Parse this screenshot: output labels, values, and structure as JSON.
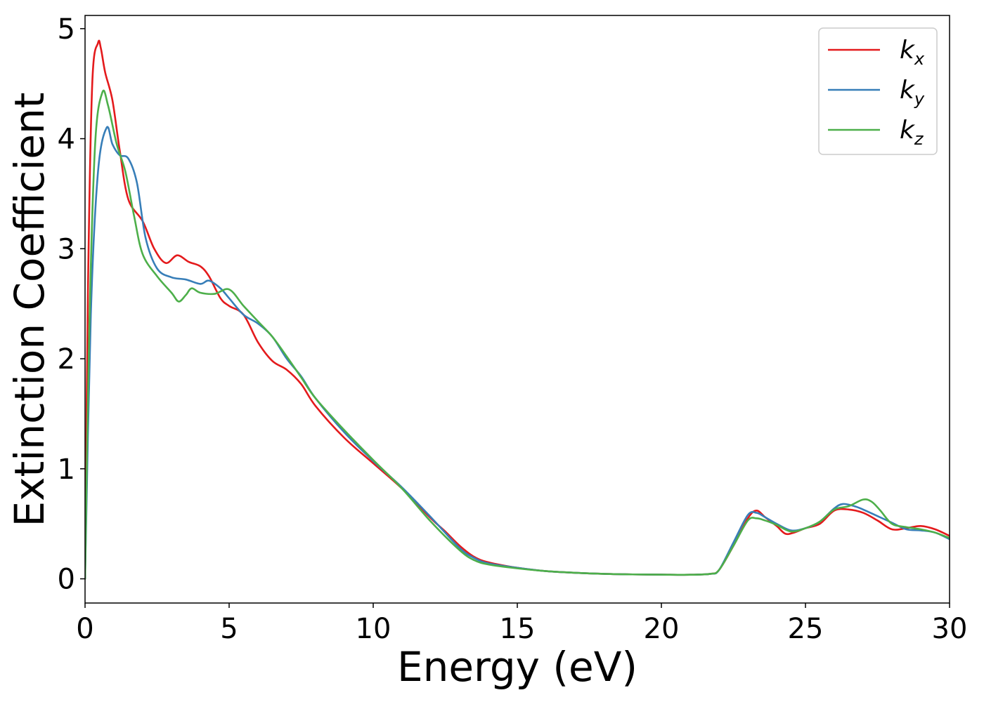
{
  "chart_data": {
    "type": "line",
    "xlabel": "Energy (eV)",
    "ylabel": "Extinction Coefficient",
    "xlim": [
      0,
      30
    ],
    "ylim": [
      -0.22,
      5.12
    ],
    "xticks": [
      0,
      5,
      10,
      15,
      20,
      25,
      30
    ],
    "xtick_labels": [
      "0",
      "5",
      "10",
      "15",
      "20",
      "25",
      "30"
    ],
    "yticks": [
      0,
      1,
      2,
      3,
      4,
      5
    ],
    "ytick_labels": [
      "0",
      "1",
      "2",
      "3",
      "4",
      "5"
    ],
    "grid": false,
    "legend_position": "top-right",
    "series": [
      {
        "name": "kx",
        "label_base": "k",
        "label_sub": "x",
        "color": "#e41a1c",
        "points": [
          [
            0,
            0
          ],
          [
            0.1,
            2.6
          ],
          [
            0.25,
            4.5
          ],
          [
            0.45,
            4.87
          ],
          [
            0.55,
            4.82
          ],
          [
            0.7,
            4.6
          ],
          [
            0.95,
            4.35
          ],
          [
            1.2,
            3.9
          ],
          [
            1.5,
            3.45
          ],
          [
            2.0,
            3.25
          ],
          [
            2.4,
            3.0
          ],
          [
            2.8,
            2.87
          ],
          [
            3.2,
            2.94
          ],
          [
            3.6,
            2.88
          ],
          [
            4.0,
            2.84
          ],
          [
            4.3,
            2.75
          ],
          [
            4.7,
            2.55
          ],
          [
            5.0,
            2.48
          ],
          [
            5.5,
            2.4
          ],
          [
            6.0,
            2.15
          ],
          [
            6.5,
            1.98
          ],
          [
            7.0,
            1.9
          ],
          [
            7.5,
            1.77
          ],
          [
            8.0,
            1.57
          ],
          [
            9.0,
            1.28
          ],
          [
            10.0,
            1.05
          ],
          [
            11.0,
            0.82
          ],
          [
            12.0,
            0.55
          ],
          [
            12.5,
            0.43
          ],
          [
            13.0,
            0.3
          ],
          [
            13.5,
            0.2
          ],
          [
            14.0,
            0.15
          ],
          [
            15.0,
            0.1
          ],
          [
            16.0,
            0.07
          ],
          [
            17.0,
            0.055
          ],
          [
            18.0,
            0.045
          ],
          [
            19.0,
            0.04
          ],
          [
            20.0,
            0.038
          ],
          [
            21.0,
            0.037
          ],
          [
            21.7,
            0.045
          ],
          [
            22.0,
            0.08
          ],
          [
            22.5,
            0.3
          ],
          [
            23.0,
            0.55
          ],
          [
            23.3,
            0.62
          ],
          [
            23.6,
            0.56
          ],
          [
            24.0,
            0.48
          ],
          [
            24.3,
            0.41
          ],
          [
            24.6,
            0.42
          ],
          [
            25.0,
            0.46
          ],
          [
            25.5,
            0.5
          ],
          [
            26.0,
            0.62
          ],
          [
            26.5,
            0.63
          ],
          [
            27.0,
            0.6
          ],
          [
            27.5,
            0.53
          ],
          [
            28.0,
            0.45
          ],
          [
            28.5,
            0.46
          ],
          [
            29.0,
            0.48
          ],
          [
            29.5,
            0.45
          ],
          [
            30.0,
            0.39
          ]
        ]
      },
      {
        "name": "ky",
        "label_base": "k",
        "label_sub": "y",
        "color": "#377eb8",
        "points": [
          [
            0,
            0
          ],
          [
            0.2,
            2.4
          ],
          [
            0.45,
            3.7
          ],
          [
            0.75,
            4.1
          ],
          [
            0.95,
            3.95
          ],
          [
            1.2,
            3.85
          ],
          [
            1.5,
            3.82
          ],
          [
            1.8,
            3.6
          ],
          [
            2.1,
            3.1
          ],
          [
            2.5,
            2.82
          ],
          [
            3.0,
            2.74
          ],
          [
            3.5,
            2.72
          ],
          [
            4.0,
            2.68
          ],
          [
            4.3,
            2.71
          ],
          [
            4.7,
            2.64
          ],
          [
            5.0,
            2.55
          ],
          [
            5.5,
            2.4
          ],
          [
            6.0,
            2.32
          ],
          [
            6.5,
            2.2
          ],
          [
            7.0,
            2.0
          ],
          [
            7.5,
            1.84
          ],
          [
            8.0,
            1.64
          ],
          [
            9.0,
            1.33
          ],
          [
            10.0,
            1.07
          ],
          [
            11.0,
            0.83
          ],
          [
            12.0,
            0.56
          ],
          [
            13.0,
            0.28
          ],
          [
            13.5,
            0.19
          ],
          [
            14.0,
            0.14
          ],
          [
            15.0,
            0.1
          ],
          [
            16.0,
            0.07
          ],
          [
            17.0,
            0.055
          ],
          [
            18.0,
            0.045
          ],
          [
            19.0,
            0.04
          ],
          [
            20.0,
            0.038
          ],
          [
            21.0,
            0.037
          ],
          [
            21.7,
            0.045
          ],
          [
            22.0,
            0.08
          ],
          [
            22.5,
            0.33
          ],
          [
            23.0,
            0.58
          ],
          [
            23.3,
            0.6
          ],
          [
            23.6,
            0.56
          ],
          [
            24.0,
            0.5
          ],
          [
            24.5,
            0.44
          ],
          [
            25.0,
            0.46
          ],
          [
            25.5,
            0.52
          ],
          [
            26.0,
            0.64
          ],
          [
            26.3,
            0.68
          ],
          [
            26.7,
            0.66
          ],
          [
            27.0,
            0.63
          ],
          [
            27.5,
            0.57
          ],
          [
            28.0,
            0.51
          ],
          [
            28.5,
            0.45
          ],
          [
            29.0,
            0.44
          ],
          [
            29.5,
            0.42
          ],
          [
            30.0,
            0.36
          ]
        ]
      },
      {
        "name": "kz",
        "label_base": "k",
        "label_sub": "z",
        "color": "#4daf4a",
        "points": [
          [
            0,
            0
          ],
          [
            0.15,
            2.3
          ],
          [
            0.35,
            3.95
          ],
          [
            0.6,
            4.42
          ],
          [
            0.8,
            4.3
          ],
          [
            1.1,
            3.95
          ],
          [
            1.4,
            3.7
          ],
          [
            1.7,
            3.3
          ],
          [
            2.0,
            2.95
          ],
          [
            2.5,
            2.75
          ],
          [
            3.0,
            2.6
          ],
          [
            3.25,
            2.52
          ],
          [
            3.5,
            2.58
          ],
          [
            3.7,
            2.64
          ],
          [
            4.0,
            2.6
          ],
          [
            4.5,
            2.59
          ],
          [
            5.0,
            2.63
          ],
          [
            5.5,
            2.48
          ],
          [
            6.0,
            2.34
          ],
          [
            6.5,
            2.2
          ],
          [
            7.0,
            2.02
          ],
          [
            7.5,
            1.83
          ],
          [
            8.0,
            1.64
          ],
          [
            9.0,
            1.35
          ],
          [
            10.0,
            1.08
          ],
          [
            11.0,
            0.82
          ],
          [
            12.0,
            0.52
          ],
          [
            13.0,
            0.26
          ],
          [
            13.5,
            0.17
          ],
          [
            14.0,
            0.13
          ],
          [
            15.0,
            0.095
          ],
          [
            16.0,
            0.07
          ],
          [
            17.0,
            0.055
          ],
          [
            18.0,
            0.045
          ],
          [
            19.0,
            0.04
          ],
          [
            20.0,
            0.038
          ],
          [
            21.0,
            0.037
          ],
          [
            21.7,
            0.045
          ],
          [
            22.0,
            0.08
          ],
          [
            22.5,
            0.3
          ],
          [
            23.0,
            0.53
          ],
          [
            23.3,
            0.55
          ],
          [
            23.6,
            0.53
          ],
          [
            24.0,
            0.49
          ],
          [
            24.5,
            0.43
          ],
          [
            25.0,
            0.46
          ],
          [
            25.5,
            0.52
          ],
          [
            26.0,
            0.63
          ],
          [
            26.5,
            0.66
          ],
          [
            27.0,
            0.72
          ],
          [
            27.3,
            0.7
          ],
          [
            27.6,
            0.62
          ],
          [
            28.0,
            0.5
          ],
          [
            28.5,
            0.47
          ],
          [
            29.0,
            0.45
          ],
          [
            29.5,
            0.42
          ],
          [
            30.0,
            0.37
          ]
        ]
      }
    ]
  }
}
